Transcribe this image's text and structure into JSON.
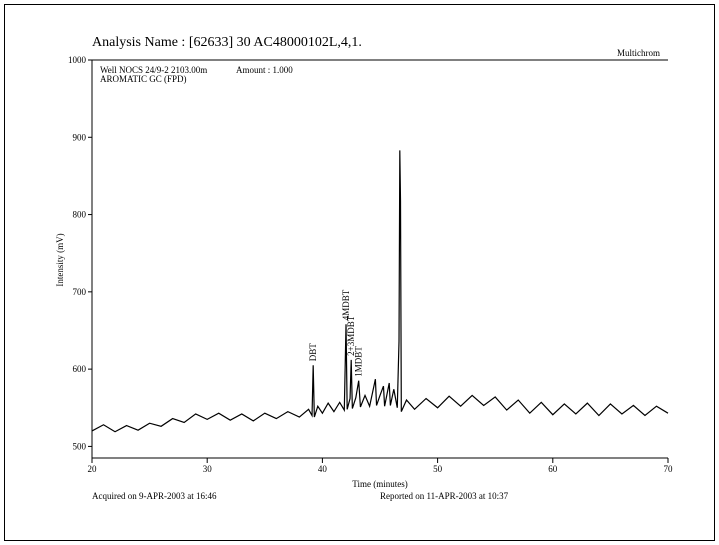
{
  "chart_data": {
    "type": "line",
    "title": "Analysis Name : [62633] 30 AC48000102L,4,1.",
    "software": "Multichrom",
    "well": "Well NOCS 24/9-2 2103.00m",
    "amount": "Amount : 1.000",
    "subtitle": "AROMATIC GC (FPD)",
    "y_label": "Intensity (mV)",
    "x_label": "Time (minutes)",
    "acquired": "Acquired on  9-APR-2003 at 16:46",
    "reported": "Reported on 11-APR-2003 at 10:37",
    "color": "#000000",
    "x": [
      20,
      21,
      22,
      23,
      24,
      25,
      26,
      27,
      28,
      29,
      30,
      31,
      32,
      33,
      34,
      35,
      36,
      37,
      38,
      38.8,
      39.1,
      39.2,
      39.3,
      39.6,
      40,
      40.5,
      41,
      41.5,
      41.9,
      42.05,
      42.15,
      42.4,
      42.5,
      42.6,
      42.9,
      43.15,
      43.3,
      43.7,
      44.1,
      44.6,
      44.7,
      45.0,
      45.3,
      45.4,
      45.8,
      45.9,
      46.2,
      46.5,
      46.65,
      46.72,
      46.78,
      46.85,
      47.3,
      48,
      49,
      50,
      51,
      52,
      53,
      54,
      55,
      56,
      57,
      58,
      59,
      60,
      61,
      62,
      63,
      64,
      65,
      66,
      67,
      68,
      69,
      70
    ],
    "values": [
      520,
      528,
      519,
      527,
      521,
      530,
      526,
      536,
      531,
      542,
      535,
      543,
      534,
      542,
      533,
      543,
      536,
      545,
      538,
      548,
      540,
      605,
      538,
      552,
      543,
      556,
      545,
      557,
      547,
      658,
      548,
      562,
      612,
      549,
      563,
      585,
      551,
      566,
      552,
      587,
      553,
      566,
      578,
      552,
      582,
      553,
      574,
      550,
      636,
      883,
      818,
      545,
      560,
      548,
      562,
      550,
      565,
      552,
      566,
      553,
      564,
      547,
      560,
      543,
      557,
      541,
      555,
      542,
      556,
      540,
      555,
      542,
      553,
      540,
      552,
      543
    ],
    "annotations": [
      {
        "text": "DBT",
        "x": 39.2,
        "y": 605
      },
      {
        "text": "4MDBT",
        "x": 42.05,
        "y": 658
      },
      {
        "text": "2+3MDBT",
        "x": 42.5,
        "y": 612
      },
      {
        "text": "1MDBT",
        "x": 43.15,
        "y": 585
      }
    ],
    "xlim": [
      20,
      70
    ],
    "xticks": [
      20,
      30,
      40,
      50,
      60,
      70
    ],
    "ylim": [
      485,
      1000
    ],
    "yticks": [
      500,
      600,
      700,
      800,
      900,
      1000
    ]
  }
}
